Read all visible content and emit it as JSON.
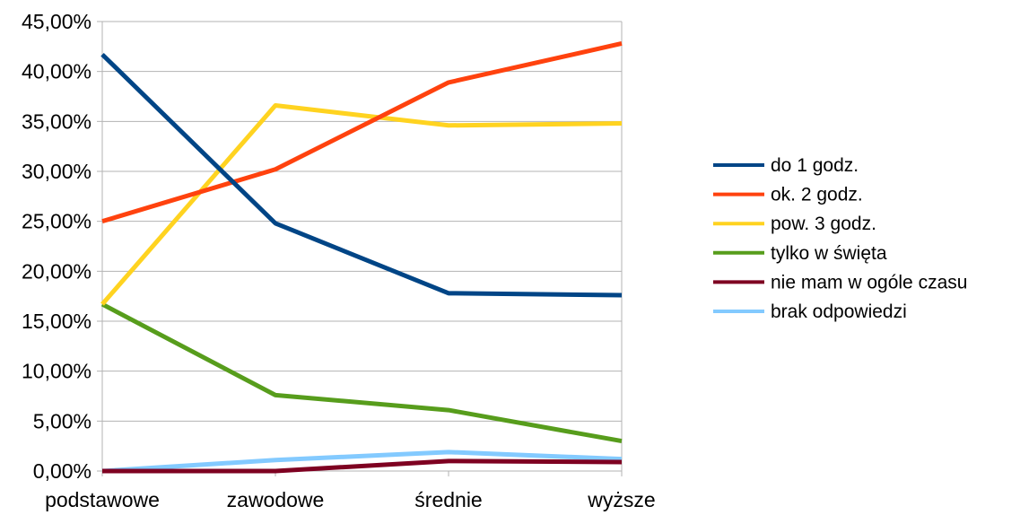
{
  "chart_data": {
    "type": "line",
    "categories": [
      "podstawowe",
      "zawodowe",
      "średnie",
      "wyższe"
    ],
    "ylim": [
      0,
      45
    ],
    "y_ticks": [
      "0,00%",
      "5,00%",
      "10,00%",
      "15,00%",
      "20,00%",
      "25,00%",
      "30,00%",
      "35,00%",
      "40,00%",
      "45,00%"
    ],
    "grid": "horizontal",
    "legend_position": "right",
    "series": [
      {
        "name": "do 1 godz.",
        "color": "#004586",
        "values": [
          41.7,
          24.8,
          17.8,
          17.6
        ]
      },
      {
        "name": "ok. 2 godz.",
        "color": "#FF420E",
        "values": [
          25.0,
          30.2,
          38.9,
          42.8
        ]
      },
      {
        "name": "pow. 3 godz.",
        "color": "#FFD320",
        "values": [
          16.7,
          36.6,
          34.6,
          34.8
        ]
      },
      {
        "name": "tylko w święta",
        "color": "#579D1C",
        "values": [
          16.7,
          7.6,
          6.1,
          3.0
        ]
      },
      {
        "name": "nie mam w ogóle czasu",
        "color": "#7E0021",
        "values": [
          0.0,
          0.0,
          1.0,
          0.9
        ]
      },
      {
        "name": "brak odpowiedzi",
        "color": "#83CAFF",
        "values": [
          0.0,
          1.1,
          1.9,
          1.2
        ]
      }
    ]
  }
}
